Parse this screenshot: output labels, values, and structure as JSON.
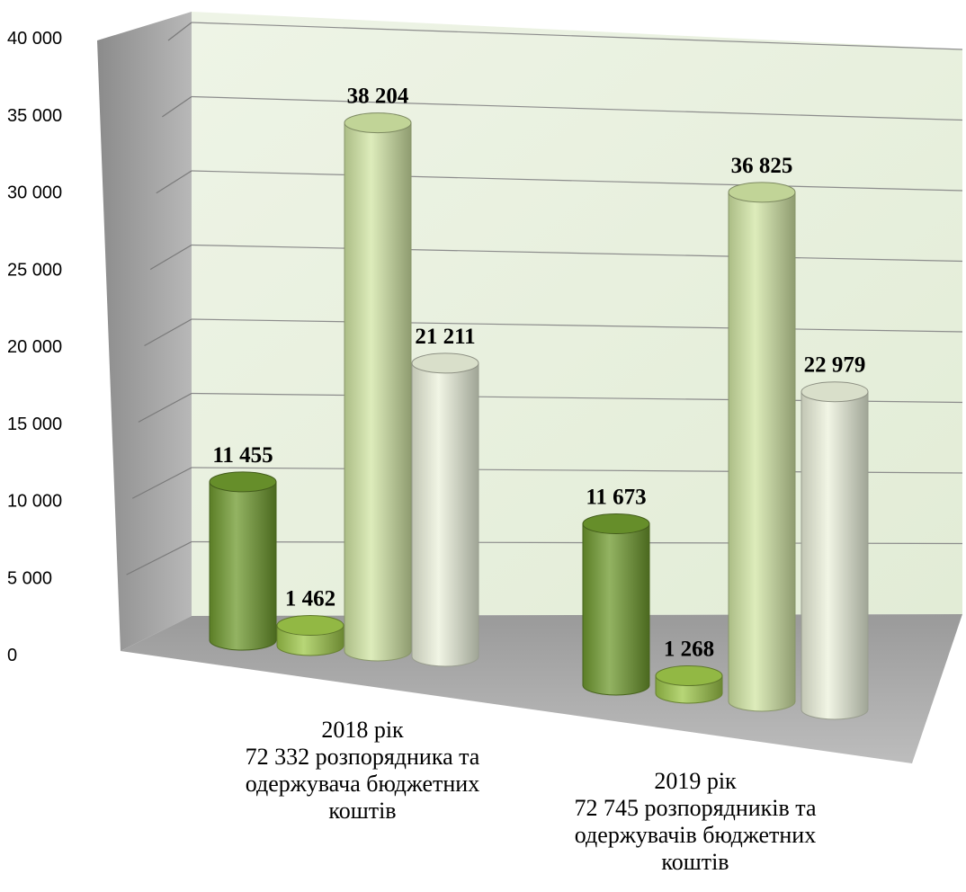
{
  "chart_data": {
    "type": "bar",
    "style": "3d-cylinder",
    "categories": [
      [
        "2018 рік",
        "72 332 розпорядника та",
        "одержувача бюджетних",
        "коштів"
      ],
      [
        "2019 рік",
        "72 745 розпорядників та",
        "одержувачів бюджетних",
        "коштів"
      ]
    ],
    "series": [
      {
        "values": [
          11455,
          11673
        ],
        "labels": [
          "11 455",
          "11 673"
        ],
        "color": "#6f9a2e"
      },
      {
        "values": [
          1462,
          1268
        ],
        "labels": [
          "1 462",
          "1 268"
        ],
        "color": "#9fc84a"
      },
      {
        "values": [
          38204,
          36825
        ],
        "labels": [
          "38 204",
          "36 825"
        ],
        "color": "#d2e6a4"
      },
      {
        "values": [
          21211,
          22979
        ],
        "labels": [
          "21 211",
          "22 979"
        ],
        "color": "#ecf2dc"
      }
    ],
    "ylim": [
      0,
      40000
    ],
    "yticks": [
      "0",
      "5 000",
      "10 000",
      "15 000",
      "20 000",
      "25 000",
      "30 000",
      "35 000",
      "40 000"
    ],
    "grid": true,
    "legend": "none"
  }
}
